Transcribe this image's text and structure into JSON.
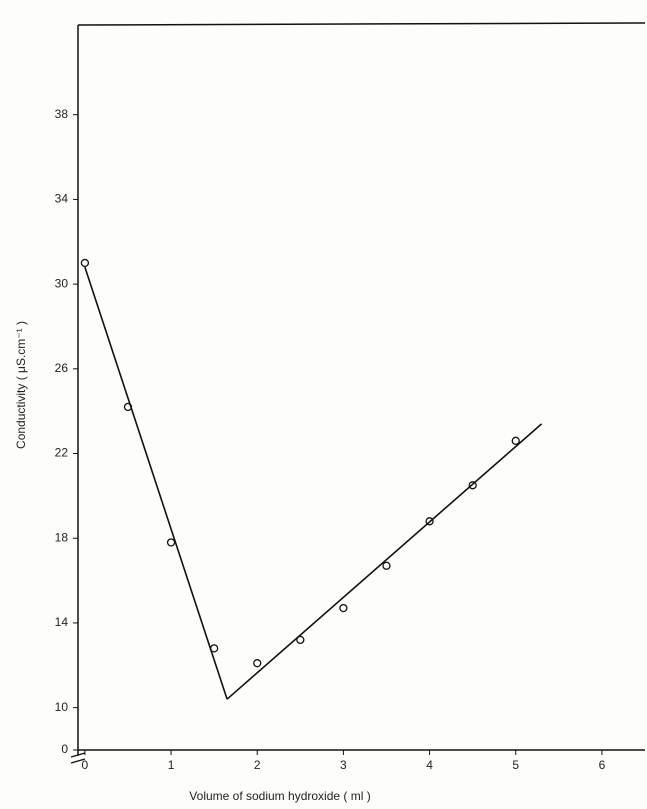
{
  "chart_data": {
    "type": "scatter",
    "xlabel": "Volume of sodium hydroxide ( ml )",
    "ylabel": "Conductivity ( μS.cm⁻¹ )",
    "xlim": [
      -0.08,
      6.5
    ],
    "xticks": [
      0,
      1,
      2,
      3,
      4,
      5,
      6
    ],
    "ylim": [
      0,
      42
    ],
    "yticks": [
      0,
      10,
      14,
      18,
      22,
      26,
      30,
      34,
      38
    ],
    "axis_break": [
      0,
      8
    ],
    "grid": false,
    "series": [
      {
        "type": "scatter",
        "color": "#111111",
        "x": [
          0,
          0.5,
          1,
          1.5,
          2,
          2.5,
          3,
          3.5,
          4,
          4.5,
          5
        ],
        "values": [
          31,
          24.2,
          17.8,
          12.8,
          12.1,
          13.2,
          14.7,
          16.7,
          18.8,
          20.5,
          22.6
        ]
      },
      {
        "type": "line",
        "color": "#111111",
        "x": [
          0,
          1.65
        ],
        "values": [
          30.8,
          10.4
        ]
      },
      {
        "type": "line",
        "color": "#111111",
        "x": [
          1.65,
          5.3
        ],
        "values": [
          10.4,
          23.4
        ]
      }
    ]
  }
}
